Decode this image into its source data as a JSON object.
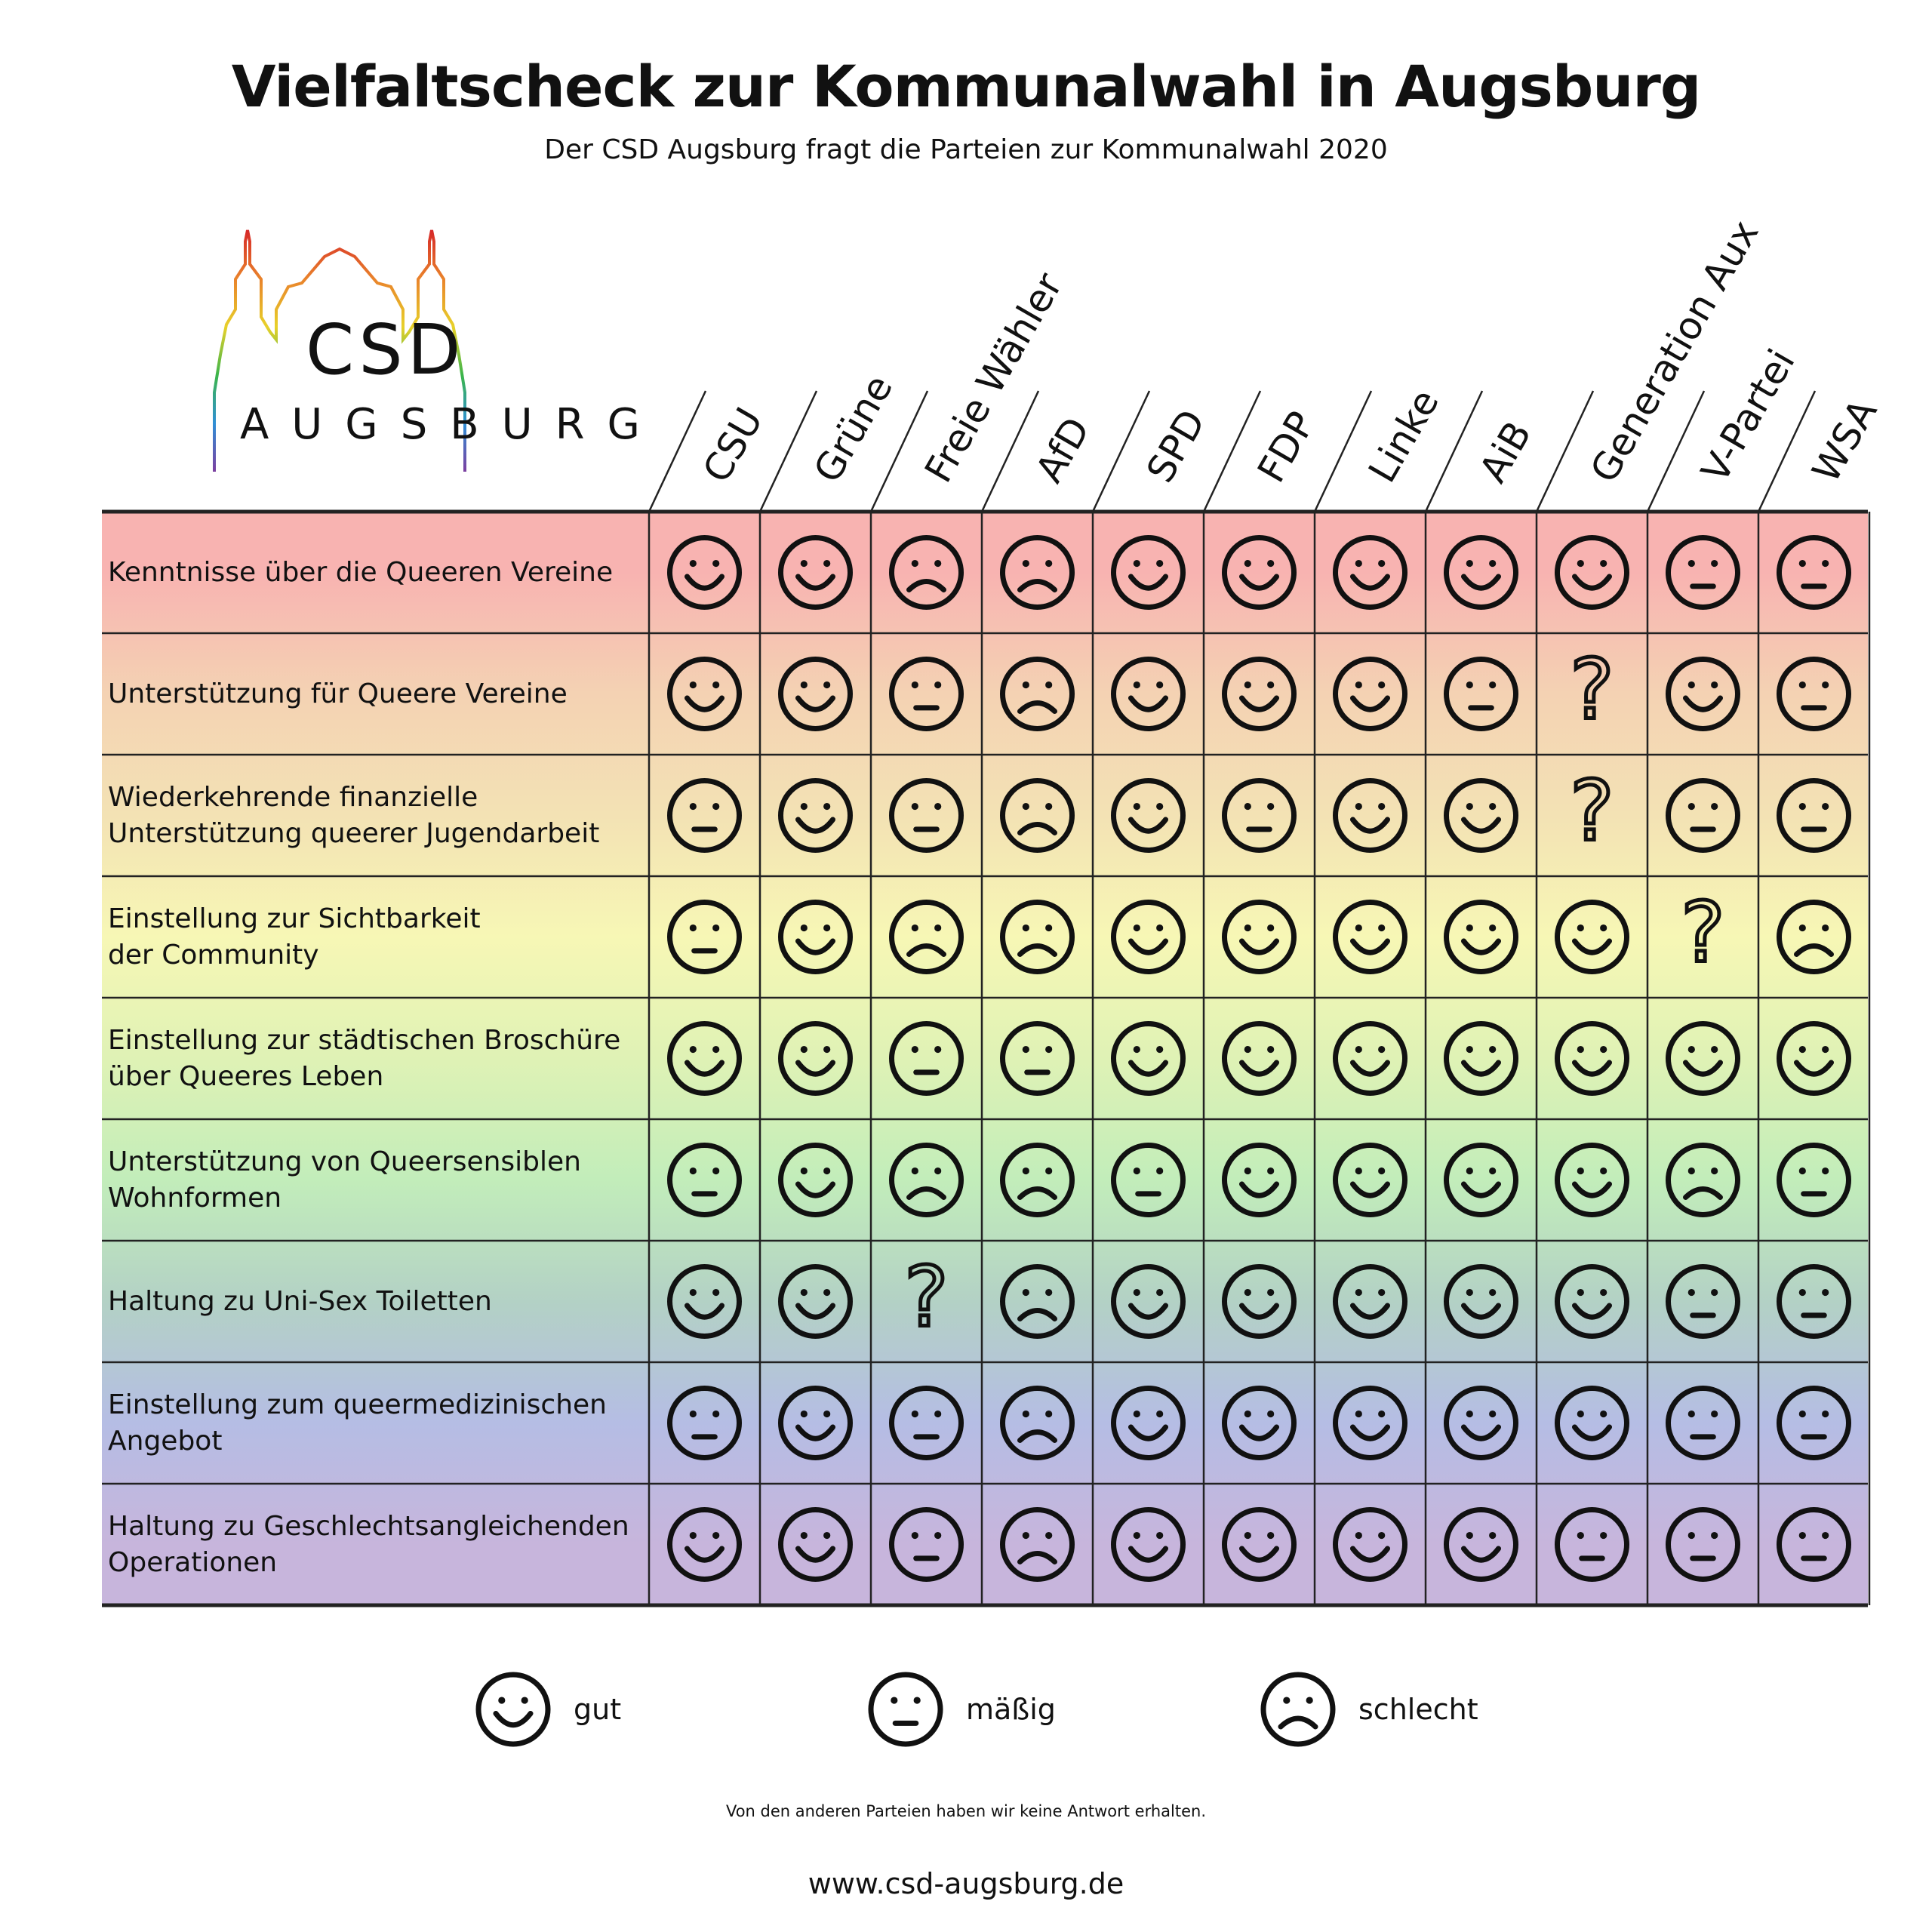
{
  "title": "Vielfaltscheck zur Kommunalwahl in Augsburg",
  "subtitle": "Der CSD Augsburg fragt die Parteien zur Kommunalwahl 2020",
  "logo": {
    "line1": "CSD",
    "line2": "AUGSBURG"
  },
  "chart_data": {
    "type": "table",
    "columns": [
      "CSU",
      "Grüne",
      "Freie Wähler",
      "AfD",
      "SPD",
      "FDP",
      "Linke",
      "AiB",
      "Generation Aux",
      "V-Partei",
      "WSA"
    ],
    "rows": [
      {
        "label": "Kenntnisse über die Queeren Vereine",
        "values": [
          "gut",
          "gut",
          "schlecht",
          "schlecht",
          "gut",
          "gut",
          "gut",
          "gut",
          "gut",
          "mäßig",
          "mäßig"
        ]
      },
      {
        "label": "Unterstützung für Queere Vereine",
        "values": [
          "gut",
          "gut",
          "mäßig",
          "schlecht",
          "gut",
          "gut",
          "gut",
          "mäßig",
          "?",
          "gut",
          "mäßig"
        ]
      },
      {
        "label": "Wiederkehrende finanzielle\nUnterstützung queerer Jugendarbeit",
        "values": [
          "mäßig",
          "gut",
          "mäßig",
          "schlecht",
          "gut",
          "mäßig",
          "gut",
          "gut",
          "?",
          "mäßig",
          "mäßig"
        ]
      },
      {
        "label": "Einstellung zur Sichtbarkeit\nder Community",
        "values": [
          "mäßig",
          "gut",
          "schlecht",
          "schlecht",
          "gut",
          "gut",
          "gut",
          "gut",
          "gut",
          "?",
          "schlecht"
        ]
      },
      {
        "label": "Einstellung zur städtischen Broschüre\nüber Queeres Leben",
        "values": [
          "gut",
          "gut",
          "mäßig",
          "mäßig",
          "gut",
          "gut",
          "gut",
          "gut",
          "gut",
          "gut",
          "gut"
        ]
      },
      {
        "label": "Unterstützung von Queersensiblen\nWohnformen",
        "values": [
          "mäßig",
          "gut",
          "schlecht",
          "schlecht",
          "mäßig",
          "gut",
          "gut",
          "gut",
          "gut",
          "schlecht",
          "mäßig"
        ]
      },
      {
        "label": "Haltung zu Uni-Sex Toiletten",
        "values": [
          "gut",
          "gut",
          "?",
          "schlecht",
          "gut",
          "gut",
          "gut",
          "gut",
          "gut",
          "mäßig",
          "mäßig"
        ]
      },
      {
        "label": "Einstellung zum queermedizinischen\nAngebot",
        "values": [
          "mäßig",
          "gut",
          "mäßig",
          "schlecht",
          "gut",
          "gut",
          "gut",
          "gut",
          "gut",
          "mäßig",
          "mäßig"
        ]
      },
      {
        "label": "Haltung zu Geschlechtsangleichenden\nOperationen",
        "values": [
          "gut",
          "gut",
          "mäßig",
          "schlecht",
          "gut",
          "gut",
          "gut",
          "gut",
          "mäßig",
          "mäßig",
          "mäßig"
        ]
      }
    ],
    "row_colors": [
      "#f8b3b1",
      "#f4d2b3",
      "#f3e2b4",
      "#f7f7b5",
      "#dff2b5",
      "#c2edba",
      "#b3d1c5",
      "#b5bde4",
      "#c7b5dc"
    ],
    "legend": [
      {
        "key": "gut",
        "label": "gut"
      },
      {
        "key": "mäßig",
        "label": "mäßig"
      },
      {
        "key": "schlecht",
        "label": "schlecht"
      }
    ]
  },
  "note": "Von den anderen Parteien haben wir keine Antwort erhalten.",
  "website": "www.csd-augsburg.de",
  "colors": {
    "rainbow": [
      "#d62828",
      "#e9822b",
      "#e8d12a",
      "#3bb54a",
      "#2f8fd6",
      "#7b3fa0"
    ]
  }
}
